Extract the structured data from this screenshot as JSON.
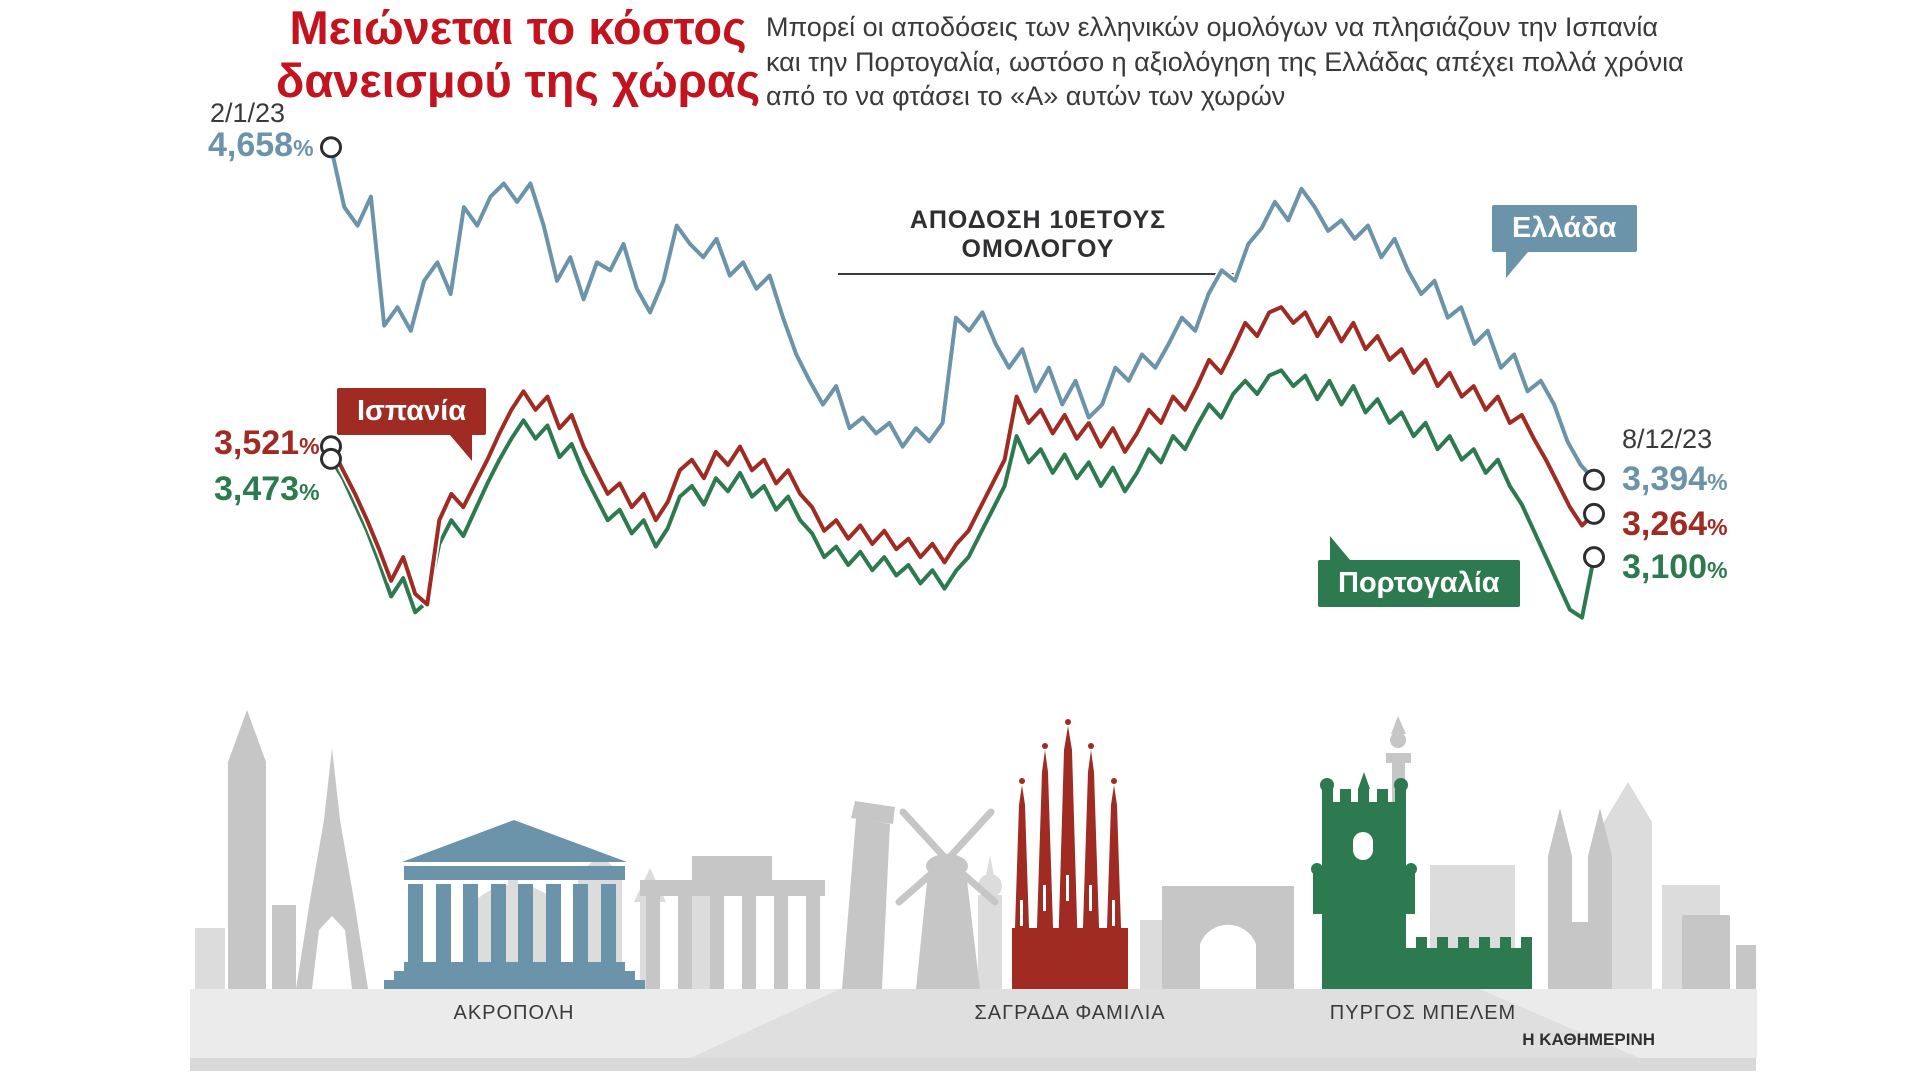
{
  "header": {
    "title_line1": "Μειώνεται το κόστος",
    "title_line2": "δανεισμού της χώρας",
    "subtitle": "Μπορεί οι αποδόσεις των ελληνικών ομολόγων να πλησιάζουν την Ισπανία και την Πορτογαλία, ωστόσο η αξιολόγηση της Ελλάδας απέχει πολλά χρόνια από το να φτάσει το «Α» αυτών των χωρών"
  },
  "chart_data": {
    "type": "line",
    "title": "ΑΠΟΔΟΣΗ 10ΕΤΟΥΣ ΟΜΟΛΟΓΟΥ",
    "unit": "%",
    "x_range": [
      "2/1/23",
      "8/12/23"
    ],
    "ylim": [
      2.8,
      4.75
    ],
    "grid": false,
    "legend_position": "callouts-on-lines",
    "series": [
      {
        "id": "greece",
        "name": "Ελλάδα",
        "color": "#6b93a9",
        "start_value": 4.658,
        "end_value": 3.394,
        "start_label": "4,658",
        "end_label": "3,394",
        "values": [
          4.658,
          4.43,
          4.36,
          4.47,
          3.98,
          4.05,
          3.96,
          4.15,
          4.22,
          4.1,
          4.43,
          4.36,
          4.47,
          4.52,
          4.45,
          4.52,
          4.36,
          4.15,
          4.24,
          4.08,
          4.22,
          4.19,
          4.29,
          4.12,
          4.03,
          4.15,
          4.36,
          4.29,
          4.24,
          4.31,
          4.17,
          4.22,
          4.12,
          4.17,
          4.01,
          3.87,
          3.77,
          3.68,
          3.75,
          3.59,
          3.63,
          3.57,
          3.61,
          3.52,
          3.59,
          3.54,
          3.61,
          4.01,
          3.96,
          4.03,
          3.91,
          3.82,
          3.89,
          3.73,
          3.82,
          3.68,
          3.77,
          3.63,
          3.68,
          3.82,
          3.77,
          3.87,
          3.82,
          3.91,
          4.01,
          3.96,
          4.1,
          4.19,
          4.15,
          4.29,
          4.35,
          4.45,
          4.38,
          4.5,
          4.43,
          4.34,
          4.38,
          4.31,
          4.36,
          4.24,
          4.31,
          4.19,
          4.1,
          4.15,
          4.01,
          4.05,
          3.91,
          3.96,
          3.82,
          3.87,
          3.73,
          3.77,
          3.68,
          3.54,
          3.45,
          3.394
        ]
      },
      {
        "id": "spain",
        "name": "Ισπανία",
        "color": "#a02b23",
        "start_value": 3.521,
        "end_value": 3.264,
        "start_label": "3,521",
        "end_label": "3,264",
        "values": [
          3.521,
          3.43,
          3.34,
          3.24,
          3.13,
          3.01,
          3.1,
          2.96,
          2.92,
          3.24,
          3.34,
          3.29,
          3.38,
          3.47,
          3.57,
          3.66,
          3.73,
          3.66,
          3.71,
          3.59,
          3.64,
          3.52,
          3.43,
          3.34,
          3.38,
          3.29,
          3.34,
          3.24,
          3.31,
          3.43,
          3.47,
          3.4,
          3.5,
          3.45,
          3.52,
          3.43,
          3.47,
          3.38,
          3.43,
          3.34,
          3.29,
          3.2,
          3.24,
          3.17,
          3.22,
          3.15,
          3.2,
          3.13,
          3.17,
          3.1,
          3.15,
          3.08,
          3.15,
          3.2,
          3.29,
          3.38,
          3.47,
          3.71,
          3.61,
          3.66,
          3.57,
          3.64,
          3.55,
          3.61,
          3.52,
          3.59,
          3.5,
          3.57,
          3.66,
          3.61,
          3.71,
          3.66,
          3.75,
          3.85,
          3.8,
          3.89,
          3.99,
          3.94,
          4.03,
          4.05,
          3.99,
          4.03,
          3.94,
          4.01,
          3.92,
          3.99,
          3.89,
          3.94,
          3.85,
          3.89,
          3.8,
          3.85,
          3.75,
          3.8,
          3.71,
          3.75,
          3.66,
          3.71,
          3.61,
          3.64,
          3.55,
          3.47,
          3.38,
          3.29,
          3.22,
          3.264
        ]
      },
      {
        "id": "portugal",
        "name": "Πορτογαλία",
        "color": "#2e7a50",
        "start_value": 3.473,
        "end_value": 3.1,
        "start_label": "3,473",
        "end_label": "3,100",
        "values": [
          3.473,
          3.4,
          3.3,
          3.2,
          3.08,
          2.95,
          3.02,
          2.89,
          2.93,
          3.15,
          3.24,
          3.18,
          3.28,
          3.38,
          3.47,
          3.55,
          3.62,
          3.55,
          3.6,
          3.48,
          3.53,
          3.42,
          3.33,
          3.24,
          3.28,
          3.19,
          3.24,
          3.14,
          3.21,
          3.33,
          3.37,
          3.3,
          3.4,
          3.35,
          3.42,
          3.33,
          3.37,
          3.28,
          3.33,
          3.24,
          3.19,
          3.1,
          3.14,
          3.07,
          3.12,
          3.05,
          3.1,
          3.03,
          3.07,
          3.0,
          3.05,
          2.98,
          3.05,
          3.1,
          3.19,
          3.28,
          3.37,
          3.56,
          3.46,
          3.51,
          3.42,
          3.49,
          3.4,
          3.46,
          3.37,
          3.44,
          3.35,
          3.42,
          3.51,
          3.46,
          3.56,
          3.51,
          3.6,
          3.68,
          3.63,
          3.72,
          3.77,
          3.72,
          3.79,
          3.81,
          3.75,
          3.79,
          3.7,
          3.77,
          3.68,
          3.75,
          3.65,
          3.7,
          3.61,
          3.65,
          3.56,
          3.61,
          3.51,
          3.56,
          3.47,
          3.51,
          3.42,
          3.47,
          3.37,
          3.3,
          3.2,
          3.1,
          3.0,
          2.9,
          2.87,
          3.1
        ]
      }
    ]
  },
  "landmarks": [
    {
      "id": "acropolis",
      "caption": "ΑΚΡΟΠΟΛΗ",
      "color": "#6b93a9"
    },
    {
      "id": "sagrada-familia",
      "caption": "ΣΑΓΡΑΔΑ ΦΑΜΙΛΙΑ",
      "color": "#a02b23"
    },
    {
      "id": "belem-tower",
      "caption": "ΠΥΡΓΟΣ ΜΠΕΛΕΜ",
      "color": "#2e7a50"
    }
  ],
  "footer": {
    "credit": "Η ΚΑΘΗΜΕΡΙΝΗ"
  },
  "colors": {
    "accent_red": "#c3131f",
    "text_dark": "#3a3a3c",
    "greece_blue": "#6b93a9",
    "spain_red": "#a02b23",
    "portugal_green": "#2e7a50"
  }
}
